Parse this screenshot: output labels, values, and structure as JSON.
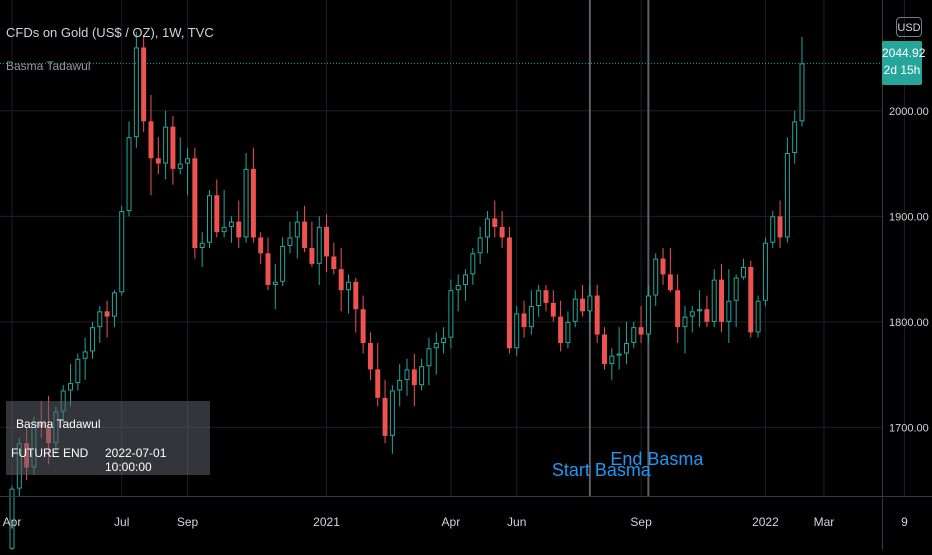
{
  "header": {
    "title": "CFDs on Gold (US$ / OZ), 1W, TVC",
    "indicator": "Basma Tadawul",
    "currency": "USD"
  },
  "price_badge": {
    "price": "2044.92",
    "countdown": "2d 15h"
  },
  "info_table": {
    "title": "Basma Tadawul",
    "row_label": "FUTURE END",
    "row_value": "2022-07-01 10:00:00"
  },
  "annotations": {
    "start": "Start Basma",
    "end": "End Basma"
  },
  "colors": {
    "up": "#26a69a",
    "down": "#ef5350",
    "label": "#2196f3",
    "grid": "#1c1f26",
    "axis_text": "#d1d4dc"
  },
  "chart_data": {
    "type": "candlestick",
    "title": "CFDs on Gold (US$ / OZ), 1W, TVC",
    "ylim": [
      1635,
      2105
    ],
    "y_ticks": [
      1700,
      1800,
      1900,
      2000
    ],
    "y_tick_labels": [
      "1700.00",
      "1800.00",
      "1900.00",
      "2000.00"
    ],
    "last_price": 2044.92,
    "x_tick_labels": [
      "Apr",
      "Jul",
      "Sep",
      "2021",
      "Apr",
      "Jun",
      "Sep",
      "2022",
      "Mar",
      "9"
    ],
    "vertical_markers": [
      "Start Basma",
      "End Basma"
    ],
    "candles": [
      [
        1585,
        1645,
        1582,
        1642
      ],
      [
        1642,
        1690,
        1635,
        1685
      ],
      [
        1685,
        1700,
        1650,
        1662
      ],
      [
        1662,
        1710,
        1655,
        1705
      ],
      [
        1705,
        1725,
        1690,
        1700
      ],
      [
        1700,
        1730,
        1665,
        1685
      ],
      [
        1685,
        1720,
        1675,
        1715
      ],
      [
        1715,
        1740,
        1705,
        1735
      ],
      [
        1735,
        1760,
        1720,
        1742
      ],
      [
        1742,
        1770,
        1735,
        1765
      ],
      [
        1765,
        1785,
        1745,
        1772
      ],
      [
        1772,
        1800,
        1765,
        1795
      ],
      [
        1795,
        1815,
        1780,
        1810
      ],
      [
        1810,
        1820,
        1785,
        1805
      ],
      [
        1805,
        1830,
        1795,
        1828
      ],
      [
        1828,
        1910,
        1825,
        1905
      ],
      [
        1905,
        1990,
        1900,
        1975
      ],
      [
        1975,
        2075,
        1965,
        2060
      ],
      [
        2060,
        2072,
        1980,
        1990
      ],
      [
        1990,
        2015,
        1920,
        1955
      ],
      [
        1955,
        1975,
        1940,
        1950
      ],
      [
        1950,
        2000,
        1935,
        1985
      ],
      [
        1985,
        1995,
        1930,
        1945
      ],
      [
        1945,
        1975,
        1940,
        1950
      ],
      [
        1950,
        1965,
        1920,
        1955
      ],
      [
        1955,
        1965,
        1860,
        1870
      ],
      [
        1870,
        1885,
        1852,
        1875
      ],
      [
        1875,
        1925,
        1870,
        1920
      ],
      [
        1920,
        1935,
        1880,
        1885
      ],
      [
        1885,
        1925,
        1880,
        1890
      ],
      [
        1890,
        1900,
        1875,
        1895
      ],
      [
        1895,
        1915,
        1870,
        1880
      ],
      [
        1880,
        1960,
        1875,
        1945
      ],
      [
        1945,
        1965,
        1875,
        1880
      ],
      [
        1880,
        1885,
        1855,
        1865
      ],
      [
        1865,
        1880,
        1830,
        1835
      ],
      [
        1835,
        1855,
        1812,
        1838
      ],
      [
        1838,
        1880,
        1834,
        1872
      ],
      [
        1872,
        1895,
        1865,
        1880
      ],
      [
        1880,
        1905,
        1860,
        1895
      ],
      [
        1895,
        1910,
        1866,
        1870
      ],
      [
        1870,
        1895,
        1852,
        1855
      ],
      [
        1855,
        1900,
        1835,
        1890
      ],
      [
        1890,
        1902,
        1847,
        1862
      ],
      [
        1862,
        1875,
        1845,
        1850
      ],
      [
        1850,
        1870,
        1810,
        1830
      ],
      [
        1830,
        1845,
        1808,
        1838
      ],
      [
        1838,
        1842,
        1790,
        1812
      ],
      [
        1812,
        1825,
        1770,
        1780
      ],
      [
        1780,
        1790,
        1745,
        1755
      ],
      [
        1755,
        1780,
        1720,
        1728
      ],
      [
        1728,
        1745,
        1685,
        1692
      ],
      [
        1692,
        1740,
        1675,
        1735
      ],
      [
        1735,
        1760,
        1720,
        1745
      ],
      [
        1745,
        1765,
        1730,
        1755
      ],
      [
        1755,
        1770,
        1720,
        1740
      ],
      [
        1740,
        1765,
        1735,
        1758
      ],
      [
        1758,
        1785,
        1740,
        1775
      ],
      [
        1775,
        1790,
        1750,
        1780
      ],
      [
        1780,
        1795,
        1770,
        1785
      ],
      [
        1785,
        1840,
        1775,
        1830
      ],
      [
        1830,
        1845,
        1810,
        1835
      ],
      [
        1835,
        1850,
        1820,
        1845
      ],
      [
        1845,
        1870,
        1835,
        1865
      ],
      [
        1865,
        1890,
        1855,
        1880
      ],
      [
        1880,
        1905,
        1865,
        1898
      ],
      [
        1898,
        1915,
        1880,
        1890
      ],
      [
        1890,
        1905,
        1870,
        1880
      ],
      [
        1880,
        1890,
        1770,
        1775
      ],
      [
        1775,
        1815,
        1768,
        1808
      ],
      [
        1808,
        1820,
        1785,
        1795
      ],
      [
        1795,
        1830,
        1788,
        1815
      ],
      [
        1815,
        1835,
        1805,
        1830
      ],
      [
        1830,
        1835,
        1810,
        1818
      ],
      [
        1818,
        1830,
        1800,
        1805
      ],
      [
        1805,
        1820,
        1772,
        1780
      ],
      [
        1780,
        1810,
        1775,
        1800
      ],
      [
        1800,
        1830,
        1795,
        1822
      ],
      [
        1822,
        1835,
        1805,
        1810
      ],
      [
        1810,
        1835,
        1800,
        1825
      ],
      [
        1825,
        1835,
        1780,
        1788
      ],
      [
        1788,
        1795,
        1755,
        1760
      ],
      [
        1760,
        1775,
        1745,
        1768
      ],
      [
        1768,
        1795,
        1755,
        1770
      ],
      [
        1770,
        1800,
        1760,
        1780
      ],
      [
        1780,
        1800,
        1775,
        1795
      ],
      [
        1795,
        1815,
        1780,
        1788
      ],
      [
        1788,
        1835,
        1780,
        1825
      ],
      [
        1825,
        1865,
        1815,
        1860
      ],
      [
        1860,
        1870,
        1835,
        1845
      ],
      [
        1845,
        1870,
        1828,
        1830
      ],
      [
        1830,
        1845,
        1780,
        1795
      ],
      [
        1795,
        1815,
        1770,
        1805
      ],
      [
        1805,
        1815,
        1790,
        1810
      ],
      [
        1810,
        1830,
        1795,
        1812
      ],
      [
        1812,
        1825,
        1795,
        1800
      ],
      [
        1800,
        1850,
        1795,
        1840
      ],
      [
        1840,
        1855,
        1790,
        1800
      ],
      [
        1800,
        1850,
        1780,
        1820
      ],
      [
        1820,
        1845,
        1795,
        1842
      ],
      [
        1842,
        1860,
        1840,
        1852
      ],
      [
        1852,
        1858,
        1785,
        1790
      ],
      [
        1790,
        1825,
        1785,
        1820
      ],
      [
        1820,
        1880,
        1815,
        1875
      ],
      [
        1875,
        1905,
        1870,
        1900
      ],
      [
        1900,
        1915,
        1870,
        1880
      ],
      [
        1880,
        1975,
        1875,
        1960
      ],
      [
        1960,
        2000,
        1950,
        1990
      ],
      [
        1990,
        2070,
        1985,
        2044.92
      ]
    ]
  }
}
